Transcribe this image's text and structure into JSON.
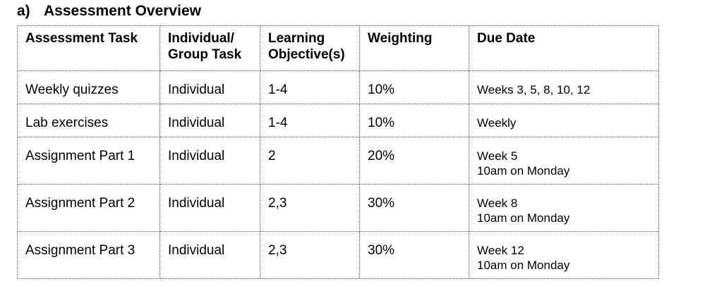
{
  "heading": {
    "letter": "a)",
    "title": "Assessment Overview"
  },
  "table": {
    "headers": [
      [
        "Assessment Task"
      ],
      [
        "Individual/",
        "Group Task"
      ],
      [
        "Learning",
        "Objective(s)"
      ],
      [
        "Weighting"
      ],
      [
        "Due Date"
      ]
    ],
    "rows": [
      {
        "task": "Weekly quizzes",
        "type": "Individual",
        "objectives": "1-4",
        "weighting": "10%",
        "due": [
          "Weeks 3, 5, 8, 10, 12"
        ]
      },
      {
        "task": "Lab exercises",
        "type": "Individual",
        "objectives": "1-4",
        "weighting": "10%",
        "due": [
          "Weekly"
        ]
      },
      {
        "task": "Assignment Part 1",
        "type": "Individual",
        "objectives": "2",
        "weighting": "20%",
        "due": [
          "Week 5",
          "10am on Monday"
        ]
      },
      {
        "task": "Assignment Part 2",
        "type": "Individual",
        "objectives": "2,3",
        "weighting": "30%",
        "due": [
          "Week 8",
          "10am on Monday"
        ]
      },
      {
        "task": "Assignment Part 3",
        "type": "Individual",
        "objectives": "2,3",
        "weighting": "30%",
        "due": [
          "Week 12",
          "10am on Monday"
        ]
      }
    ]
  }
}
